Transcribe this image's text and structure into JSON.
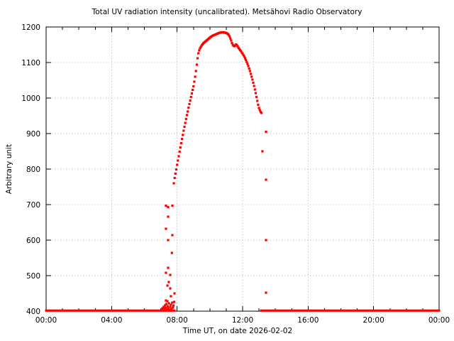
{
  "chart_data": {
    "type": "scatter",
    "title": "Total UV radiation intensity (uncalibrated). Metsähovi Radio Observatory",
    "xlabel": "Time UT, on date 2026-02-02",
    "ylabel": "Arbitrary unit",
    "grid": true,
    "legend": "none",
    "colors": {
      "points": "#ff0000",
      "grid": "#b8b8b8",
      "axis": "#000000",
      "text": "#000000",
      "background": "#ffffff"
    },
    "x_axis": {
      "range_hours": [
        0,
        24
      ],
      "minor_tick_every_hours": 1,
      "major_ticks": [
        {
          "hours": 0,
          "label": "00:00"
        },
        {
          "hours": 4,
          "label": "04:00"
        },
        {
          "hours": 8,
          "label": "08:00"
        },
        {
          "hours": 12,
          "label": "12:00"
        },
        {
          "hours": 16,
          "label": "16:00"
        },
        {
          "hours": 20,
          "label": "20:00"
        },
        {
          "hours": 24,
          "label": "00:00"
        }
      ]
    },
    "y_axis": {
      "range": [
        400,
        1200
      ],
      "major_ticks": [
        {
          "value": 400,
          "label": "400"
        },
        {
          "value": 500,
          "label": "500"
        },
        {
          "value": 600,
          "label": "600"
        },
        {
          "value": 700,
          "label": "700"
        },
        {
          "value": 800,
          "label": "800"
        },
        {
          "value": 900,
          "label": "900"
        },
        {
          "value": 1000,
          "label": "1000"
        },
        {
          "value": 1100,
          "label": "1100"
        },
        {
          "value": 1200,
          "label": "1200"
        }
      ]
    },
    "baseline_value": 400,
    "baseline_segments_hours": [
      [
        0,
        7.84
      ],
      [
        13.13,
        24
      ]
    ],
    "series": [
      {
        "name": "uv-intensity-main-curve",
        "points": [
          [
            7.85,
            775
          ],
          [
            7.9,
            787
          ],
          [
            7.95,
            799
          ],
          [
            8.0,
            812
          ],
          [
            8.05,
            824
          ],
          [
            8.1,
            836
          ],
          [
            8.15,
            849
          ],
          [
            8.2,
            861
          ],
          [
            8.25,
            873
          ],
          [
            8.3,
            885
          ],
          [
            8.35,
            896
          ],
          [
            8.4,
            908
          ],
          [
            8.45,
            919
          ],
          [
            8.5,
            930
          ],
          [
            8.55,
            941
          ],
          [
            8.6,
            952
          ],
          [
            8.65,
            962
          ],
          [
            8.7,
            973
          ],
          [
            8.75,
            983
          ],
          [
            8.8,
            993
          ],
          [
            8.85,
            1003
          ],
          [
            8.9,
            1013
          ],
          [
            8.95,
            1023
          ],
          [
            9.0,
            1033
          ],
          [
            9.05,
            1046
          ],
          [
            9.1,
            1060
          ],
          [
            9.15,
            1076
          ],
          [
            9.2,
            1094
          ],
          [
            9.25,
            1112
          ],
          [
            9.3,
            1126
          ],
          [
            9.35,
            1134
          ],
          [
            9.4,
            1140
          ],
          [
            9.45,
            1144
          ],
          [
            9.5,
            1148
          ],
          [
            9.55,
            1151
          ],
          [
            9.6,
            1154
          ],
          [
            9.65,
            1156
          ],
          [
            9.7,
            1158
          ],
          [
            9.75,
            1160
          ],
          [
            9.8,
            1162
          ],
          [
            9.85,
            1164
          ],
          [
            9.9,
            1166
          ],
          [
            9.95,
            1168
          ],
          [
            10.0,
            1170
          ],
          [
            10.05,
            1172
          ],
          [
            10.1,
            1173
          ],
          [
            10.15,
            1175
          ],
          [
            10.2,
            1176
          ],
          [
            10.25,
            1177
          ],
          [
            10.3,
            1178
          ],
          [
            10.35,
            1179
          ],
          [
            10.4,
            1180
          ],
          [
            10.45,
            1181
          ],
          [
            10.5,
            1182
          ],
          [
            10.55,
            1183
          ],
          [
            10.6,
            1184
          ],
          [
            10.65,
            1184
          ],
          [
            10.7,
            1185
          ],
          [
            10.75,
            1185
          ],
          [
            10.8,
            1185
          ],
          [
            10.85,
            1185
          ],
          [
            10.9,
            1184
          ],
          [
            10.95,
            1184
          ],
          [
            11.0,
            1183
          ],
          [
            11.05,
            1182
          ],
          [
            11.1,
            1180
          ],
          [
            11.15,
            1178
          ],
          [
            11.2,
            1174
          ],
          [
            11.25,
            1168
          ],
          [
            11.3,
            1162
          ],
          [
            11.35,
            1155
          ],
          [
            11.4,
            1150
          ],
          [
            11.45,
            1147
          ],
          [
            11.5,
            1146
          ],
          [
            11.55,
            1148
          ],
          [
            11.6,
            1151
          ],
          [
            11.65,
            1149
          ],
          [
            11.7,
            1145
          ],
          [
            11.75,
            1141
          ],
          [
            11.8,
            1138
          ],
          [
            11.85,
            1135
          ],
          [
            11.9,
            1132
          ],
          [
            11.95,
            1128
          ],
          [
            12.0,
            1125
          ],
          [
            12.05,
            1121
          ],
          [
            12.1,
            1117
          ],
          [
            12.15,
            1112
          ],
          [
            12.2,
            1107
          ],
          [
            12.25,
            1102
          ],
          [
            12.3,
            1096
          ],
          [
            12.35,
            1090
          ],
          [
            12.4,
            1083
          ],
          [
            12.45,
            1076
          ],
          [
            12.5,
            1068
          ],
          [
            12.55,
            1060
          ],
          [
            12.6,
            1052
          ],
          [
            12.65,
            1043
          ],
          [
            12.7,
            1034
          ],
          [
            12.75,
            1024
          ],
          [
            12.8,
            1014
          ],
          [
            12.85,
            1003
          ],
          [
            12.9,
            992
          ],
          [
            12.95,
            981
          ],
          [
            13.0,
            972
          ],
          [
            13.05,
            966
          ],
          [
            13.1,
            961
          ],
          [
            13.15,
            958
          ]
        ]
      },
      {
        "name": "pre-rise-scatter",
        "points": [
          [
            7.32,
            697
          ],
          [
            7.45,
            693
          ],
          [
            7.71,
            697
          ],
          [
            7.45,
            666
          ],
          [
            7.32,
            632
          ],
          [
            7.71,
            614
          ],
          [
            7.45,
            600
          ],
          [
            7.68,
            564
          ],
          [
            7.45,
            522
          ],
          [
            7.32,
            508
          ],
          [
            7.58,
            502
          ],
          [
            7.49,
            482
          ],
          [
            7.41,
            472
          ],
          [
            7.58,
            464
          ],
          [
            7.62,
            442
          ],
          [
            7.32,
            430
          ],
          [
            7.41,
            428
          ],
          [
            7.8,
            760
          ],
          [
            7.06,
            404
          ],
          [
            7.1,
            408
          ],
          [
            7.14,
            403
          ],
          [
            7.18,
            412
          ],
          [
            7.22,
            406
          ],
          [
            7.26,
            416
          ],
          [
            7.3,
            409
          ],
          [
            7.34,
            420
          ],
          [
            7.38,
            405
          ],
          [
            7.42,
            414
          ],
          [
            7.46,
            408
          ],
          [
            7.5,
            422
          ],
          [
            7.54,
            404
          ],
          [
            7.58,
            412
          ],
          [
            7.62,
            418
          ],
          [
            7.66,
            406
          ],
          [
            7.7,
            424
          ],
          [
            7.74,
            410
          ],
          [
            7.78,
            416
          ],
          [
            7.82,
            426
          ],
          [
            7.84,
            450
          ]
        ]
      },
      {
        "name": "post-drop-scatter",
        "points": [
          [
            13.43,
            905
          ],
          [
            13.21,
            850
          ],
          [
            13.43,
            770
          ],
          [
            13.43,
            600
          ],
          [
            13.43,
            452
          ]
        ]
      }
    ]
  }
}
